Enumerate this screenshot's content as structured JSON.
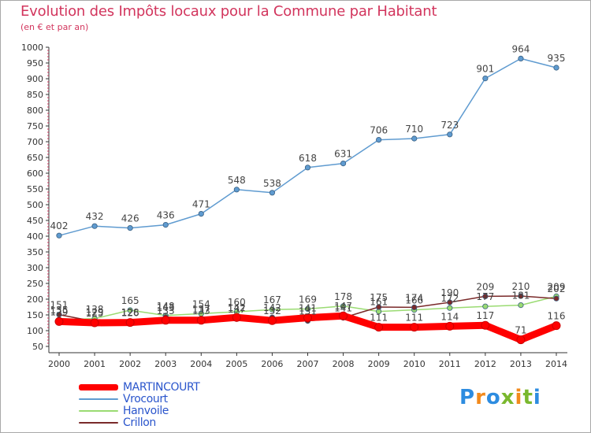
{
  "title": "Evolution des Impôts locaux pour la Commune par Habitant",
  "subtitle": "(en € et par an)",
  "logo": {
    "text": "Proxiti",
    "colors": [
      "#2d8ce0",
      "#f28a1c",
      "#2d8ce0",
      "#7ab82e",
      "#f28a1c",
      "#7ab82e",
      "#2d8ce0"
    ]
  },
  "chart_data": {
    "type": "line",
    "x": [
      "2000",
      "2001",
      "2002",
      "2003",
      "2004",
      "2005",
      "2006",
      "2007",
      "2008",
      "2009",
      "2010",
      "2011",
      "2012",
      "2013",
      "2014"
    ],
    "ylim": [
      50,
      1000
    ],
    "yticks": [
      50,
      100,
      150,
      200,
      250,
      300,
      350,
      400,
      450,
      500,
      550,
      600,
      650,
      700,
      750,
      800,
      850,
      900,
      950,
      1000
    ],
    "grid": false,
    "legend_position": "bottom-left",
    "series": [
      {
        "name": "MARTINCOURT",
        "color": "#ff0000",
        "values": [
          129,
          125,
          126,
          133,
          133,
          142,
          132,
          141,
          147,
          111,
          111,
          114,
          117,
          71,
          116
        ],
        "labels": [
          "129",
          "125",
          "126",
          "133",
          "133",
          "142",
          "132",
          "141",
          "147",
          "111",
          "111",
          "114",
          "117",
          "71",
          "116"
        ]
      },
      {
        "name": "Vrocourt",
        "color": "#5f9bd0",
        "values": [
          402,
          432,
          426,
          436,
          471,
          548,
          538,
          618,
          631,
          706,
          710,
          723,
          901,
          964,
          935
        ],
        "labels": [
          "402",
          "432",
          "426",
          "436",
          "471",
          "548",
          "538",
          "618",
          "631",
          "706",
          "710",
          "723",
          "901",
          "964",
          "935"
        ]
      },
      {
        "name": "Hanvoile",
        "color": "#9adb72",
        "values": [
          135,
          138,
          165,
          148,
          154,
          160,
          167,
          169,
          178,
          161,
          166,
          172,
          177,
          181,
          209
        ],
        "labels": [
          "135",
          "138",
          "165",
          "148",
          "154",
          "160",
          "167",
          "169",
          "178",
          "161",
          "166",
          "172",
          "177",
          "181",
          "209"
        ]
      },
      {
        "name": "Crillon",
        "color": "#7a2a2a",
        "values": [
          151,
          129,
          128,
          143,
          137,
          137,
          142,
          131,
          141,
          175,
          174,
          190,
          209,
          210,
          202
        ],
        "labels": [
          "151",
          "129",
          "128",
          "143",
          "137",
          "137",
          "142",
          "131",
          "141",
          "175",
          "174",
          "190",
          "209",
          "210",
          "202"
        ]
      }
    ]
  }
}
